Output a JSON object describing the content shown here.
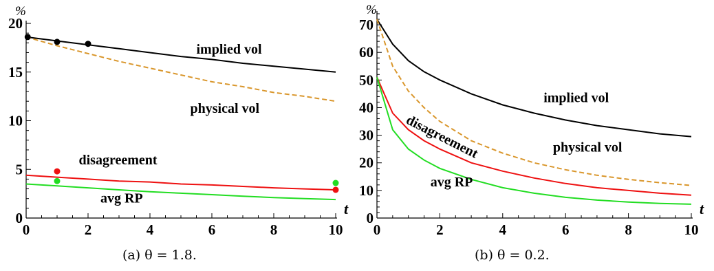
{
  "chart_data": [
    {
      "type": "line",
      "caption": "(a) θ = 1.8.",
      "xlabel": "t",
      "ylabel": "%",
      "xlim": [
        0,
        10
      ],
      "ylim": [
        0,
        20
      ],
      "xticks": [
        "0",
        "2",
        "4",
        "6",
        "8",
        "10"
      ],
      "yticks": [
        "0",
        "5",
        "10",
        "15",
        "20"
      ],
      "colors": {
        "implied": "#000000",
        "physical": "#d9962b",
        "disagreement": "#ee1111",
        "avg": "#22dd22"
      },
      "series": [
        {
          "key": "implied",
          "name": "implied vol",
          "dashed": false,
          "x": [
            0,
            1,
            2,
            3,
            4,
            5,
            6,
            7,
            8,
            9,
            10
          ],
          "y": [
            18.6,
            18.2,
            17.8,
            17.4,
            17.0,
            16.6,
            16.3,
            15.9,
            15.6,
            15.3,
            15.0
          ]
        },
        {
          "key": "physical",
          "name": "physical vol",
          "dashed": true,
          "x": [
            0,
            1,
            2,
            3,
            4,
            5,
            6,
            7,
            8,
            9,
            10
          ],
          "y": [
            18.6,
            17.7,
            16.9,
            16.1,
            15.4,
            14.7,
            14.0,
            13.5,
            12.9,
            12.5,
            12.0
          ]
        },
        {
          "key": "disagreement",
          "name": "disagreement",
          "dashed": false,
          "x": [
            0,
            1,
            2,
            3,
            4,
            5,
            6,
            7,
            8,
            9,
            10
          ],
          "y": [
            4.4,
            4.2,
            4.0,
            3.8,
            3.7,
            3.5,
            3.4,
            3.25,
            3.1,
            3.0,
            2.9
          ]
        },
        {
          "key": "avg",
          "name": "avg RP",
          "dashed": false,
          "x": [
            0,
            1,
            2,
            3,
            4,
            5,
            6,
            7,
            8,
            9,
            10
          ],
          "y": [
            3.5,
            3.3,
            3.1,
            2.9,
            2.7,
            2.55,
            2.4,
            2.25,
            2.1,
            2.0,
            1.9
          ]
        }
      ],
      "points": [
        {
          "key": "implied",
          "x": 0.05,
          "y": 18.6
        },
        {
          "key": "implied",
          "x": 1,
          "y": 18.1
        },
        {
          "key": "implied",
          "x": 2,
          "y": 17.9
        },
        {
          "key": "disagreement",
          "x": 1,
          "y": 4.8
        },
        {
          "key": "disagreement",
          "x": 10,
          "y": 2.9
        },
        {
          "key": "avg",
          "x": 1,
          "y": 3.8
        },
        {
          "key": "avg",
          "x": 10,
          "y": 3.6
        }
      ],
      "annotations": [
        {
          "key": "implied",
          "text": "implied vol",
          "x": 5.5,
          "y": 16.9,
          "angle": 0
        },
        {
          "key": "physical",
          "text": "physical vol",
          "x": 5.3,
          "y": 10.8,
          "angle": 0
        },
        {
          "key": "disagreement",
          "text": "disagreement",
          "x": 1.7,
          "y": 5.5,
          "angle": 0
        },
        {
          "key": "avg",
          "text": "avg RP",
          "x": 2.4,
          "y": 1.6,
          "angle": 0
        }
      ]
    },
    {
      "type": "line",
      "caption": "(b) θ = 0.2.",
      "xlabel": "t",
      "ylabel": "%",
      "xlim": [
        0,
        10
      ],
      "ylim": [
        0,
        75
      ],
      "xticks": [
        "0",
        "2",
        "4",
        "6",
        "8",
        "10"
      ],
      "yticks": [
        "0",
        "10",
        "20",
        "30",
        "40",
        "50",
        "60",
        "70"
      ],
      "colors": {
        "implied": "#000000",
        "physical": "#d9962b",
        "disagreement": "#ee1111",
        "avg": "#22dd22"
      },
      "series": [
        {
          "key": "implied",
          "name": "implied vol",
          "dashed": false,
          "x": [
            0,
            0.5,
            1,
            1.5,
            2,
            3,
            4,
            5,
            6,
            7,
            8,
            9,
            10
          ],
          "y": [
            72,
            63,
            57,
            53,
            50,
            45,
            41,
            38,
            35.5,
            33.5,
            32,
            30.5,
            29.5
          ]
        },
        {
          "key": "physical",
          "name": "physical vol",
          "dashed": true,
          "x": [
            0,
            0.5,
            1,
            1.5,
            2,
            3,
            4,
            5,
            6,
            7,
            8,
            9,
            10
          ],
          "y": [
            72,
            55,
            46,
            40,
            35,
            28,
            23.5,
            20,
            17.5,
            15.5,
            14,
            12.8,
            11.8
          ]
        },
        {
          "key": "disagreement",
          "name": "disagreement",
          "dashed": false,
          "x": [
            0,
            0.5,
            1,
            1.5,
            2,
            3,
            4,
            5,
            6,
            7,
            8,
            9,
            10
          ],
          "y": [
            51,
            38,
            32,
            28,
            25,
            20,
            17,
            14.5,
            12.5,
            11,
            10,
            9,
            8.3
          ]
        },
        {
          "key": "avg",
          "name": "avg RP",
          "dashed": false,
          "x": [
            0,
            0.5,
            1,
            1.5,
            2,
            3,
            4,
            5,
            6,
            7,
            8,
            9,
            10
          ],
          "y": [
            51,
            32,
            25,
            21,
            18,
            14,
            11,
            9,
            7.5,
            6.5,
            5.8,
            5.3,
            5.0
          ]
        }
      ],
      "points": [],
      "annotations": [
        {
          "key": "implied",
          "text": "implied vol",
          "x": 5.3,
          "y": 42,
          "angle": 0
        },
        {
          "key": "physical",
          "text": "physical vol",
          "x": 5.6,
          "y": 24,
          "angle": 0
        },
        {
          "key": "disagreement",
          "text": "disagreement",
          "x": 0.9,
          "y": 34.5,
          "angle": 27
        },
        {
          "key": "avg",
          "text": "avg RP",
          "x": 1.7,
          "y": 11.5,
          "angle": 0
        }
      ]
    }
  ]
}
